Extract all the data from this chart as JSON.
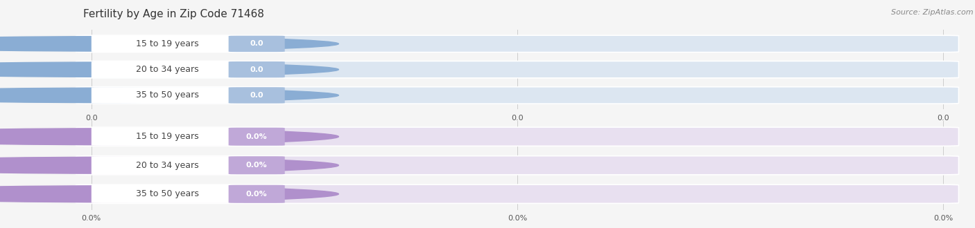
{
  "title": "Fertility by Age in Zip Code 71468",
  "source": "Source: ZipAtlas.com",
  "top_group": {
    "categories": [
      "15 to 19 years",
      "20 to 34 years",
      "35 to 50 years"
    ],
    "values": [
      0.0,
      0.0,
      0.0
    ],
    "bar_bg_color": "#dce6f1",
    "bar_edge_color": "#c5d5e8",
    "dot_color": "#8aadd4",
    "badge_color": "#a8c0de",
    "badge_text_color": "#ffffff",
    "cat_text_color": "#444444",
    "tick_labels": [
      "0.0",
      "0.0",
      "0.0"
    ],
    "value_suffix": ""
  },
  "bottom_group": {
    "categories": [
      "15 to 19 years",
      "20 to 34 years",
      "35 to 50 years"
    ],
    "values": [
      0.0,
      0.0,
      0.0
    ],
    "bar_bg_color": "#e8e0f0",
    "bar_edge_color": "#d8cce8",
    "dot_color": "#b090cc",
    "badge_color": "#c0a8d8",
    "badge_text_color": "#ffffff",
    "cat_text_color": "#444444",
    "tick_labels": [
      "0.0%",
      "0.0%",
      "0.0%"
    ],
    "value_suffix": "%"
  },
  "bg_color": "#f5f5f5",
  "grid_color": "#cccccc",
  "title_fontsize": 11,
  "source_fontsize": 8,
  "label_fontsize": 9,
  "badge_fontsize": 8,
  "tick_fontsize": 8
}
